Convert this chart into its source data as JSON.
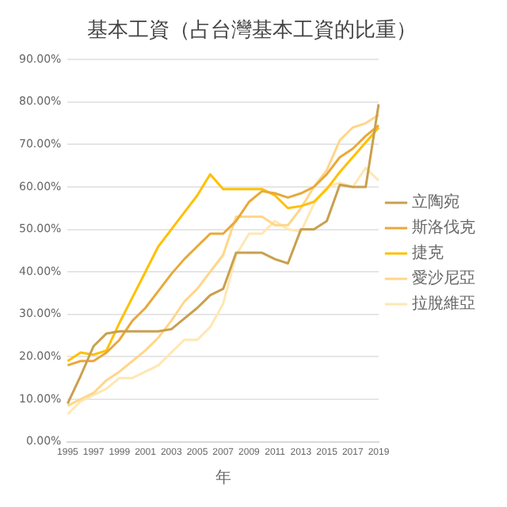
{
  "chart_data": {
    "type": "line",
    "title": "基本工資（占台灣基本工資的比重）",
    "xlabel": "年",
    "categories": [
      "1995",
      null,
      "1997",
      null,
      "1999",
      null,
      "2001",
      null,
      "2003",
      null,
      "2005",
      null,
      "2007",
      null,
      "2009",
      null,
      "2011",
      null,
      "2013",
      null,
      "2015",
      null,
      "2017",
      null,
      "2019"
    ],
    "series": [
      {
        "name": "立陶宛",
        "color": "#c9a04f",
        "values": [
          9,
          15.5,
          22.5,
          25.5,
          26,
          26,
          26,
          26,
          26.5,
          29,
          31.5,
          34.5,
          36,
          44.5,
          44.5,
          44.5,
          43,
          42,
          50,
          50,
          52,
          60.5,
          60,
          60,
          79.5
        ]
      },
      {
        "name": "斯洛伐克",
        "color": "#e8a93a",
        "values": [
          18,
          19,
          19,
          21,
          24,
          28.5,
          31.5,
          35.5,
          39.5,
          43,
          46,
          49,
          49,
          52,
          56.5,
          59,
          58.5,
          57.5,
          58.5,
          60,
          63,
          67,
          69,
          72,
          74.5
        ]
      },
      {
        "name": "捷克",
        "color": "#ffc000",
        "values": [
          19,
          21,
          20.5,
          21.5,
          28,
          34,
          40,
          46,
          50,
          54,
          58,
          63,
          59.5,
          59.5,
          59.5,
          59.5,
          58,
          55,
          55.5,
          56.5,
          59.5,
          63.5,
          67,
          70.5,
          74
        ]
      },
      {
        "name": "愛沙尼亞",
        "color": "#ffd68a",
        "values": [
          8.5,
          10,
          11.5,
          14.5,
          16.5,
          19,
          21.5,
          24.5,
          28.5,
          33,
          36,
          40,
          44,
          53,
          53,
          53,
          51,
          51,
          55,
          60,
          64,
          71,
          74,
          75,
          77
        ]
      },
      {
        "name": "拉脫維亞",
        "color": "#ffe7b3",
        "values": [
          6.5,
          9.5,
          11,
          12.5,
          15,
          15,
          16.5,
          18,
          21,
          24,
          24,
          27,
          32.5,
          44,
          49,
          49,
          52,
          50,
          49.5,
          56,
          60,
          61,
          60,
          64.5,
          61.5
        ]
      }
    ],
    "ylim": [
      0,
      90
    ],
    "yticks": [
      {
        "value": 0,
        "label": "0.00%"
      },
      {
        "value": 10,
        "label": "10.00%"
      },
      {
        "value": 20,
        "label": "20.00%"
      },
      {
        "value": 30,
        "label": "30.00%"
      },
      {
        "value": 40,
        "label": "40.00%"
      },
      {
        "value": 50,
        "label": "50.00%"
      },
      {
        "value": 60,
        "label": "60.00%"
      },
      {
        "value": 70,
        "label": "70.00%"
      },
      {
        "value": 80,
        "label": "80.00%"
      },
      {
        "value": 90,
        "label": "90.00%"
      }
    ],
    "grid": "y",
    "legend": "right",
    "marker": "none",
    "line_style": "solid"
  }
}
